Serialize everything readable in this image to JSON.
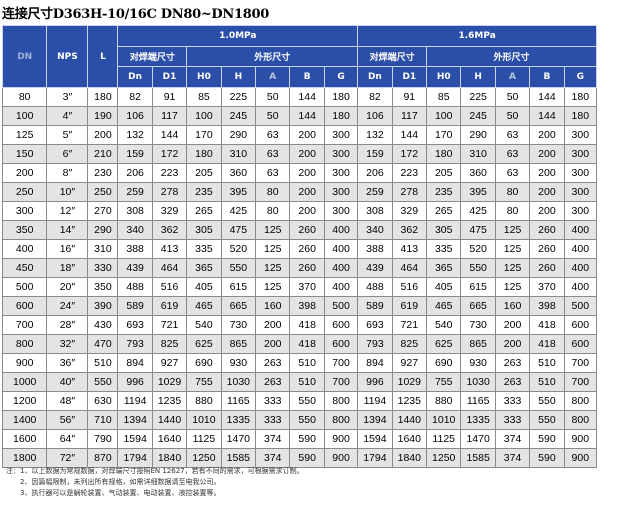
{
  "title": "连接尺寸D363H-10/16C DN80~DN1800",
  "header": {
    "dn": "DN",
    "nps": "NPS",
    "l": "L",
    "pressure_1": "1.0MPa",
    "pressure_2": "1.6MPa",
    "group_butt": "对焊端尺寸",
    "group_outline": "外形尺寸",
    "sub_cols": [
      "Dn",
      "D1",
      "H0",
      "H",
      "A",
      "B",
      "G"
    ]
  },
  "rows": [
    [
      "80",
      "3″",
      "180",
      "82",
      "91",
      "85",
      "225",
      "50",
      "144",
      "180",
      "82",
      "91",
      "85",
      "225",
      "50",
      "144",
      "180"
    ],
    [
      "100",
      "4″",
      "190",
      "106",
      "117",
      "100",
      "245",
      "50",
      "144",
      "180",
      "106",
      "117",
      "100",
      "245",
      "50",
      "144",
      "180"
    ],
    [
      "125",
      "5″",
      "200",
      "132",
      "144",
      "170",
      "290",
      "63",
      "200",
      "300",
      "132",
      "144",
      "170",
      "290",
      "63",
      "200",
      "300"
    ],
    [
      "150",
      "6″",
      "210",
      "159",
      "172",
      "180",
      "310",
      "63",
      "200",
      "300",
      "159",
      "172",
      "180",
      "310",
      "63",
      "200",
      "300"
    ],
    [
      "200",
      "8″",
      "230",
      "206",
      "223",
      "205",
      "360",
      "63",
      "200",
      "300",
      "206",
      "223",
      "205",
      "360",
      "63",
      "200",
      "300"
    ],
    [
      "250",
      "10″",
      "250",
      "259",
      "278",
      "235",
      "395",
      "80",
      "200",
      "300",
      "259",
      "278",
      "235",
      "395",
      "80",
      "200",
      "300"
    ],
    [
      "300",
      "12″",
      "270",
      "308",
      "329",
      "265",
      "425",
      "80",
      "200",
      "300",
      "308",
      "329",
      "265",
      "425",
      "80",
      "200",
      "300"
    ],
    [
      "350",
      "14″",
      "290",
      "340",
      "362",
      "305",
      "475",
      "125",
      "260",
      "400",
      "340",
      "362",
      "305",
      "475",
      "125",
      "260",
      "400"
    ],
    [
      "400",
      "16″",
      "310",
      "388",
      "413",
      "335",
      "520",
      "125",
      "260",
      "400",
      "388",
      "413",
      "335",
      "520",
      "125",
      "260",
      "400"
    ],
    [
      "450",
      "18″",
      "330",
      "439",
      "464",
      "365",
      "550",
      "125",
      "260",
      "400",
      "439",
      "464",
      "365",
      "550",
      "125",
      "260",
      "400"
    ],
    [
      "500",
      "20″",
      "350",
      "488",
      "516",
      "405",
      "615",
      "125",
      "370",
      "400",
      "488",
      "516",
      "405",
      "615",
      "125",
      "370",
      "400"
    ],
    [
      "600",
      "24″",
      "390",
      "589",
      "619",
      "465",
      "665",
      "160",
      "398",
      "500",
      "589",
      "619",
      "465",
      "665",
      "160",
      "398",
      "500"
    ],
    [
      "700",
      "28″",
      "430",
      "693",
      "721",
      "540",
      "730",
      "200",
      "418",
      "600",
      "693",
      "721",
      "540",
      "730",
      "200",
      "418",
      "600"
    ],
    [
      "800",
      "32″",
      "470",
      "793",
      "825",
      "625",
      "865",
      "200",
      "418",
      "600",
      "793",
      "825",
      "625",
      "865",
      "200",
      "418",
      "600"
    ],
    [
      "900",
      "36″",
      "510",
      "894",
      "927",
      "690",
      "930",
      "263",
      "510",
      "700",
      "894",
      "927",
      "690",
      "930",
      "263",
      "510",
      "700"
    ],
    [
      "1000",
      "40″",
      "550",
      "996",
      "1029",
      "755",
      "1030",
      "263",
      "510",
      "700",
      "996",
      "1029",
      "755",
      "1030",
      "263",
      "510",
      "700"
    ],
    [
      "1200",
      "48″",
      "630",
      "1194",
      "1235",
      "880",
      "1165",
      "333",
      "550",
      "800",
      "1194",
      "1235",
      "880",
      "1165",
      "333",
      "550",
      "800"
    ],
    [
      "1400",
      "56″",
      "710",
      "1394",
      "1440",
      "1010",
      "1335",
      "333",
      "550",
      "800",
      "1394",
      "1440",
      "1010",
      "1335",
      "333",
      "550",
      "800"
    ],
    [
      "1600",
      "64″",
      "790",
      "1594",
      "1640",
      "1125",
      "1470",
      "374",
      "590",
      "900",
      "1594",
      "1640",
      "1125",
      "1470",
      "374",
      "590",
      "900"
    ],
    [
      "1800",
      "72″",
      "870",
      "1794",
      "1840",
      "1250",
      "1585",
      "374",
      "590",
      "900",
      "1794",
      "1840",
      "1250",
      "1585",
      "374",
      "590",
      "900"
    ]
  ],
  "notes": [
    "注：1、以上数据为常规数据，对焊端尺寸按照EN 12627，若有不同的需求，可根据需求订制。",
    "2、因篇幅限制，未列出所有规格，如需详细数据请至电我公司。",
    "3、执行器可以是蜗轮装置、气动装置、电动装置、液控装置等。"
  ]
}
